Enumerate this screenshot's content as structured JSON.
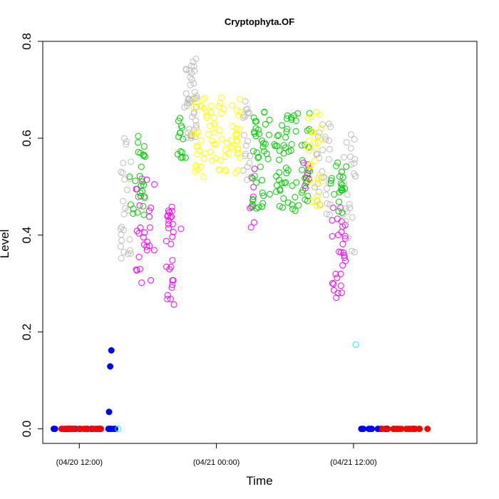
{
  "chart_data": {
    "type": "scatter",
    "title": "Cryptophyta.OF",
    "xlabel": "Time",
    "ylabel": "Level",
    "x_unit": "hours",
    "x_tick_values": [
      12,
      24,
      36
    ],
    "x_tick_labels": [
      "(04/20 12:00)",
      "(04/21 00:00)",
      "(04/21 12:00)"
    ],
    "xlim": [
      8.8,
      46.8
    ],
    "y_ticks": [
      0.0,
      0.2,
      0.4,
      0.6,
      0.8
    ],
    "y_tick_labels": [
      "0.0",
      "0.2",
      "0.4",
      "0.6",
      "0.8"
    ],
    "ylim": [
      -0.03,
      0.8
    ],
    "grid": false,
    "legend": "none",
    "point_fill": {
      "#0000ff": true,
      "#ff0000": true,
      "#00ffff": false,
      "#ff00ff": false,
      "#bebebe": false,
      "#00cd00": false,
      "#ffff00": false
    },
    "groups": [
      {
        "color": "#0000ff",
        "segments": [
          [
            9.3,
            12.0,
            0.0,
            0.0,
            10
          ],
          [
            12.8,
            15.2,
            0.0,
            0.0,
            12
          ],
          [
            35.4,
            40.5,
            0.0,
            0.0,
            14
          ]
        ],
        "points": [
          [
            14.8,
            0.162
          ],
          [
            14.7,
            0.129
          ],
          [
            14.6,
            0.035
          ]
        ]
      },
      {
        "color": "#ff0000",
        "segments": [
          [
            10.4,
            13.9,
            0.0,
            0.0,
            20
          ],
          [
            38.5,
            42.6,
            0.0,
            0.0,
            20
          ]
        ],
        "points": []
      },
      {
        "color": "#00ffff",
        "segments": [],
        "points": [
          [
            15.4,
            0.0
          ],
          [
            36.2,
            0.174
          ]
        ]
      },
      {
        "color": "#ff00ff",
        "segments": [
          [
            16.8,
            18.7,
            0.3,
            0.52,
            28
          ],
          [
            19.6,
            20.3,
            0.25,
            0.46,
            28
          ],
          [
            26.9,
            27.6,
            0.41,
            0.55,
            8
          ],
          [
            31.6,
            32.2,
            0.49,
            0.55,
            10
          ],
          [
            34.1,
            35.3,
            0.27,
            0.46,
            30
          ]
        ],
        "points": [
          [
            20.9,
            0.413
          ]
        ]
      },
      {
        "color": "#bebebe",
        "segments": [
          [
            15.6,
            16.6,
            0.34,
            0.61,
            26
          ],
          [
            21.2,
            22.3,
            0.6,
            0.77,
            45
          ],
          [
            26.3,
            27.0,
            0.51,
            0.68,
            18
          ],
          [
            32.6,
            34.0,
            0.44,
            0.63,
            30
          ],
          [
            34.8,
            36.2,
            0.35,
            0.62,
            28
          ]
        ],
        "points": []
      },
      {
        "color": "#00cd00",
        "segments": [
          [
            16.4,
            17.8,
            0.44,
            0.61,
            26
          ],
          [
            20.6,
            21.4,
            0.54,
            0.66,
            14
          ],
          [
            27.1,
            32.3,
            0.45,
            0.66,
            110
          ],
          [
            34.0,
            35.5,
            0.44,
            0.56,
            20
          ]
        ],
        "points": []
      },
      {
        "color": "#ffff00",
        "segments": [
          [
            21.9,
            26.2,
            0.52,
            0.69,
            80
          ],
          [
            31.9,
            33.3,
            0.46,
            0.66,
            30
          ]
        ],
        "points": []
      }
    ]
  }
}
